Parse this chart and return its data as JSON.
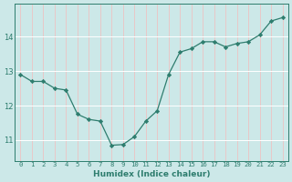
{
  "x": [
    0,
    1,
    2,
    3,
    4,
    5,
    6,
    7,
    8,
    9,
    10,
    11,
    12,
    13,
    14,
    15,
    16,
    17,
    18,
    19,
    20,
    21,
    22,
    23
  ],
  "y": [
    12.9,
    12.7,
    12.7,
    12.5,
    12.45,
    11.75,
    11.6,
    11.55,
    10.85,
    10.87,
    11.1,
    11.55,
    11.85,
    12.9,
    13.55,
    13.65,
    13.85,
    13.85,
    13.7,
    13.8,
    13.85,
    14.05,
    14.45,
    14.55
  ],
  "line_color": "#2e7d6e",
  "marker": "D",
  "markersize": 2.2,
  "linewidth": 0.9,
  "bg_color": "#cce8e8",
  "grid_color": "#ffffff",
  "tick_color": "#2e7d6e",
  "xlabel": "Humidex (Indice chaleur)",
  "xlabel_fontsize": 6.5,
  "tick_label_color": "#2e7d6e",
  "yticks": [
    11,
    12,
    13,
    14
  ],
  "ylim": [
    10.4,
    14.95
  ],
  "xlim": [
    -0.5,
    23.5
  ],
  "xtick_fontsize": 5.2,
  "ytick_fontsize": 6.0
}
